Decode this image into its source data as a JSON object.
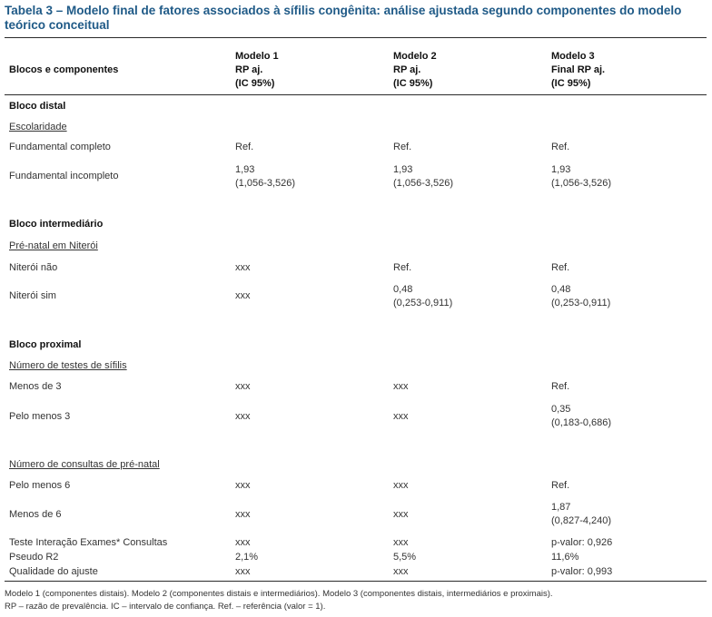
{
  "title": "Tabela 3 – Modelo final de fatores associados à sífilis congênita: análise ajustada segundo componentes do modelo teórico conceitual",
  "header": {
    "col0": "Blocos e componentes",
    "col1": [
      "Modelo 1",
      "RP aj.",
      "(IC 95%)"
    ],
    "col2": [
      "Modelo 2",
      "RP aj.",
      "(IC 95%)"
    ],
    "col3": [
      "Modelo 3",
      "Final RP aj.",
      "(IC 95%)"
    ]
  },
  "rows": [
    {
      "label": "Bloco distal",
      "kind": "block",
      "vals": []
    },
    {
      "label": "Escolaridade",
      "kind": "sub",
      "vals": []
    },
    {
      "label": "Fundamental completo",
      "kind": "row",
      "vals": [
        [
          "Ref."
        ],
        [
          "Ref."
        ],
        [
          "Ref."
        ]
      ]
    },
    {
      "label": "Fundamental incompleto",
      "kind": "row",
      "vals": [
        [
          "1,93",
          "(1,056-3,526)"
        ],
        [
          "1,93",
          "(1,056-3,526)"
        ],
        [
          "1,93",
          "(1,056-3,526)"
        ]
      ]
    },
    {
      "label": "Bloco intermediário",
      "kind": "block",
      "vals": []
    },
    {
      "label": "Pré-natal em Niterói",
      "kind": "sub",
      "vals": []
    },
    {
      "label": "Niterói não",
      "kind": "row",
      "vals": [
        [
          "xxx"
        ],
        [
          "Ref."
        ],
        [
          "Ref."
        ]
      ]
    },
    {
      "label": "Niterói sim",
      "kind": "row",
      "vals": [
        [
          "xxx"
        ],
        [
          "0,48",
          "(0,253-0,911)"
        ],
        [
          "0,48",
          "(0,253-0,911)"
        ]
      ]
    },
    {
      "label": "Bloco proximal",
      "kind": "block",
      "vals": []
    },
    {
      "label": "Número de testes de sífilis",
      "kind": "sub",
      "vals": []
    },
    {
      "label": "Menos de 3",
      "kind": "row",
      "vals": [
        [
          "xxx"
        ],
        [
          "xxx"
        ],
        [
          "Ref."
        ]
      ]
    },
    {
      "label": "Pelo menos 3",
      "kind": "row",
      "vals": [
        [
          "xxx"
        ],
        [
          "xxx"
        ],
        [
          "0,35",
          "(0,183-0,686)"
        ]
      ]
    },
    {
      "label": "Número de consultas de pré-natal",
      "kind": "sub",
      "vals": []
    },
    {
      "label": "Pelo menos 6",
      "kind": "row",
      "vals": [
        [
          "xxx"
        ],
        [
          "xxx"
        ],
        [
          "Ref."
        ]
      ]
    },
    {
      "label": "Menos de 6",
      "kind": "row",
      "vals": [
        [
          "xxx"
        ],
        [
          "xxx"
        ],
        [
          "1,87",
          "(0,827-4,240)"
        ]
      ]
    },
    {
      "label": "Teste Interação Exames* Consultas",
      "kind": "row",
      "vals": [
        [
          "xxx"
        ],
        [
          "xxx"
        ],
        [
          "p-valor: 0,926"
        ]
      ]
    },
    {
      "label": "Pseudo R2",
      "kind": "row",
      "vals": [
        [
          "2,1%"
        ],
        [
          "5,5%"
        ],
        [
          "11,6%"
        ]
      ]
    },
    {
      "label": "Qualidade do ajuste",
      "kind": "row",
      "vals": [
        [
          "xxx"
        ],
        [
          "xxx"
        ],
        [
          "p-valor: 0,993"
        ]
      ]
    }
  ],
  "notes": [
    "Modelo 1 (componentes distais). Modelo 2 (componentes distais e intermediários). Modelo 3 (componentes distais, intermediários e proximais).",
    "RP – razão de prevalência. IC – intervalo de confiança. Ref. – referência (valor = 1)."
  ]
}
